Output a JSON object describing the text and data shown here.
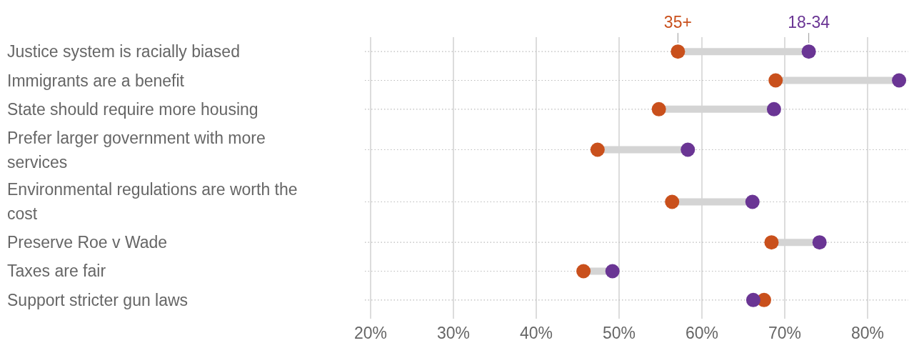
{
  "chart_data": {
    "type": "scatter",
    "categories": [
      "Justice system is racially biased",
      "Immigrants are a benefit",
      "State should require more housing",
      "Prefer larger government with more services",
      "Environmental regulations are worth the cost",
      "Preserve Roe v Wade",
      "Taxes are fair",
      "Support stricter gun laws"
    ],
    "orientation": "horizontal",
    "series": [
      {
        "name": "35+",
        "color": "#c9501c",
        "values": [
          57.1,
          68.9,
          54.8,
          47.4,
          56.4,
          68.4,
          45.7,
          67.5
        ]
      },
      {
        "name": "18-34",
        "color": "#6a3594",
        "values": [
          72.9,
          83.8,
          68.7,
          58.3,
          66.1,
          74.2,
          49.2,
          66.2
        ]
      }
    ],
    "xlim": [
      20,
      85
    ],
    "xticks": [
      {
        "value": 20,
        "label": "20%"
      },
      {
        "value": 30,
        "label": "30%"
      },
      {
        "value": 40,
        "label": "40%"
      },
      {
        "value": 50,
        "label": "50%"
      },
      {
        "value": 60,
        "label": "60%"
      },
      {
        "value": 70,
        "label": "70%"
      },
      {
        "value": 80,
        "label": "80%"
      }
    ],
    "grid": true,
    "marker": "circle"
  }
}
